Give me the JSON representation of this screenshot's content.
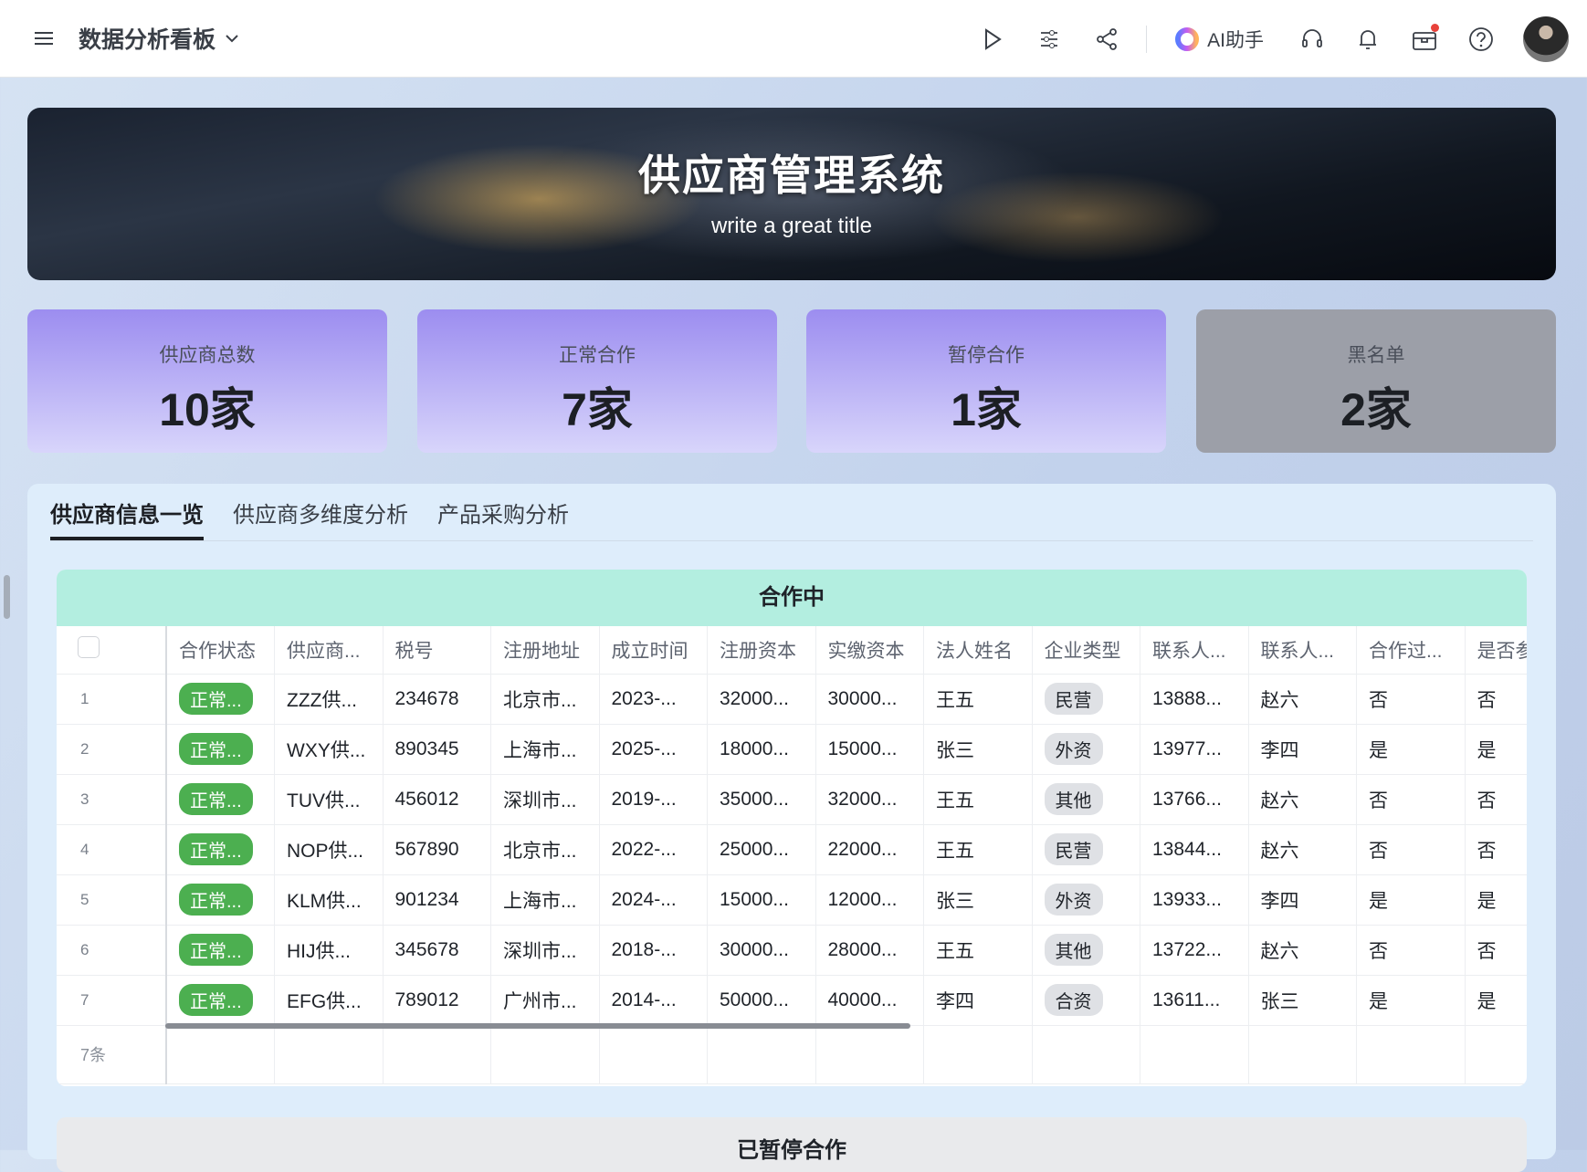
{
  "topbar": {
    "title": "数据分析看板",
    "ai_label": "AI助手",
    "icons": [
      "menu-icon",
      "chevron-down-icon",
      "play-icon",
      "settings-sliders-icon",
      "share-icon",
      "ai-logo-icon",
      "headset-icon",
      "bell-icon",
      "inbox-icon",
      "help-icon"
    ]
  },
  "banner": {
    "title": "供应商管理系统",
    "subtitle": "write a great title"
  },
  "stats": [
    {
      "label": "供应商总数",
      "value": "10家"
    },
    {
      "label": "正常合作",
      "value": "7家"
    },
    {
      "label": "暂停合作",
      "value": "1家"
    },
    {
      "label": "黑名单",
      "value": "2家"
    }
  ],
  "tabs": [
    {
      "label": "供应商信息一览",
      "active": true
    },
    {
      "label": "供应商多维度分析"
    },
    {
      "label": "产品采购分析"
    }
  ],
  "table": {
    "title": "合作中",
    "columns": [
      "合作状态",
      "供应商...",
      "税号",
      "注册地址",
      "成立时间",
      "注册资本",
      "实缴资本",
      "法人姓名",
      "企业类型",
      "联系人...",
      "联系人...",
      "合作过...",
      "是否参"
    ],
    "rows": [
      [
        "1",
        "正常...",
        "ZZZ供...",
        "234678",
        "北京市...",
        "2023-...",
        "32000...",
        "30000...",
        "王五",
        "民营",
        "13888...",
        "赵六",
        "否",
        "否"
      ],
      [
        "2",
        "正常...",
        "WXY供...",
        "890345",
        "上海市...",
        "2025-...",
        "18000...",
        "15000...",
        "张三",
        "外资",
        "13977...",
        "李四",
        "是",
        "是"
      ],
      [
        "3",
        "正常...",
        "TUV供...",
        "456012",
        "深圳市...",
        "2019-...",
        "35000...",
        "32000...",
        "王五",
        "其他",
        "13766...",
        "赵六",
        "否",
        "否"
      ],
      [
        "4",
        "正常...",
        "NOP供...",
        "567890",
        "北京市...",
        "2022-...",
        "25000...",
        "22000...",
        "王五",
        "民营",
        "13844...",
        "赵六",
        "否",
        "否"
      ],
      [
        "5",
        "正常...",
        "KLM供...",
        "901234",
        "上海市...",
        "2024-...",
        "15000...",
        "12000...",
        "张三",
        "外资",
        "13933...",
        "李四",
        "是",
        "是"
      ],
      [
        "6",
        "正常...",
        "HIJ供...",
        "345678",
        "深圳市...",
        "2018-...",
        "30000...",
        "28000...",
        "王五",
        "其他",
        "13722...",
        "赵六",
        "否",
        "否"
      ],
      [
        "7",
        "正常...",
        "EFG供...",
        "789012",
        "广州市...",
        "2014-...",
        "50000...",
        "40000...",
        "李四",
        "合资",
        "13611...",
        "张三",
        "是",
        "是"
      ]
    ],
    "footer": "7条"
  },
  "table2": {
    "title": "已暂停合作"
  },
  "colors": {
    "status_green": "#4caf50",
    "header_mint": "#b3eee0",
    "stat_purple": "#9c8df0",
    "stat_gray": "#9c9fa8"
  }
}
